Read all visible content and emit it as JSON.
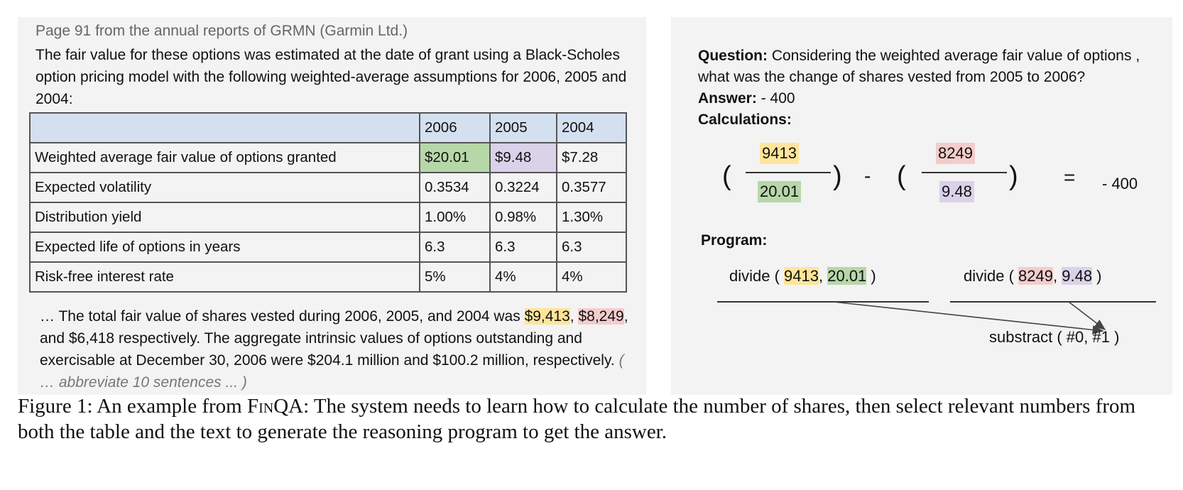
{
  "left": {
    "source_line": "Page 91 from the annual reports of GRMN (Garmin Ltd.)",
    "intro": "The fair value for these options was estimated at the date of grant using a Black-Scholes option pricing model with the following weighted-average assumptions for 2006, 2005 and 2004:",
    "table": {
      "header": [
        "",
        "2006",
        "2005",
        "2004"
      ],
      "rows": [
        [
          "Weighted average fair value of options granted",
          "$20.01",
          "$9.48",
          "$7.28"
        ],
        [
          "Expected volatility",
          "0.3534",
          "0.3224",
          "0.3577"
        ],
        [
          "Distribution yield",
          "1.00%",
          "0.98%",
          "1.30%"
        ],
        [
          "Expected life of options in years",
          "6.3",
          "6.3",
          "6.3"
        ],
        [
          "Risk-free interest rate",
          "5%",
          "4%",
          "4%"
        ]
      ]
    },
    "tail": {
      "t1": "… The total fair value of shares vested during 2006, 2005, and 2004 was ",
      "h1": "$9,413",
      "t2": ", ",
      "h2": "$8,249",
      "t3": ", and $6,418 respectively. The aggregate intrinsic values of options outstanding and exercisable at December 30, 2006 were $204.1 million and $100.2 million, respectively. ",
      "abbr": "( … abbreviate 10 sentences ... )"
    }
  },
  "right": {
    "question_label": "Question:",
    "question": " Considering the weighted average fair value of options , what was the change of shares vested from 2005 to 2006?",
    "answer_label": "Answer:",
    "answer": " - 400",
    "calc_label": "Calculations:",
    "calc": {
      "open": "(",
      "close": ")",
      "num1": "9413",
      "den1": "20.01",
      "minus": "-",
      "num2": "8249",
      "den2": "9.48",
      "equals": "=",
      "result": "- 400"
    },
    "program_label": "Program:",
    "program": {
      "step1": {
        "op": "divide ( ",
        "a": "9413",
        "sep": ", ",
        "b": "20.01",
        "end": " )"
      },
      "step2": {
        "op": "divide ( ",
        "a": "8249",
        "sep": ", ",
        "b": "9.48",
        "end": " )"
      },
      "step3": "substract ( #0, #1 )"
    }
  },
  "caption": {
    "prefix": "Figure 1: An example from ",
    "name": "FinQA",
    "text": ": The system needs to learn how to calculate the number of shares, then select relevant numbers from both the table and the text to generate the reasoning program to get the answer."
  },
  "colors": {
    "highlight_yellow": "#ffe599",
    "highlight_red": "#f4cccc",
    "highlight_green": "#b7d7a8",
    "highlight_purple": "#d9d2e9",
    "table_header": "#d4e0f0",
    "panel_bg": "#f3f3f3"
  }
}
